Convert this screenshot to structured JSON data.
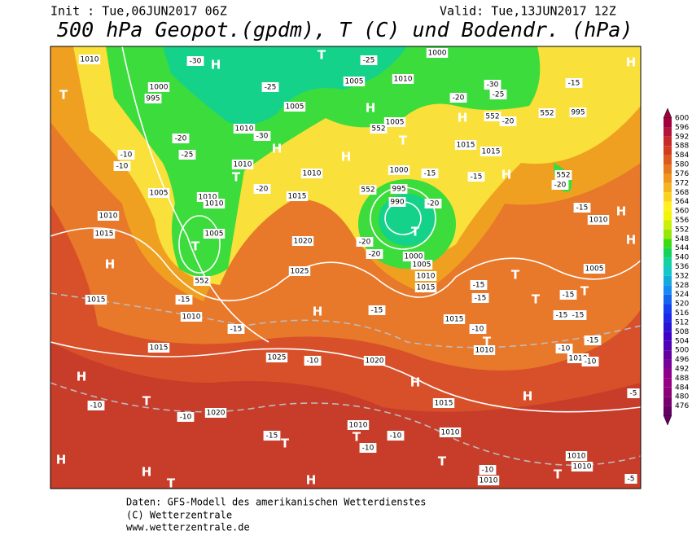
{
  "header": {
    "init": "Init : Tue,06JUN2017 06Z",
    "valid": "Valid: Tue,13JUN2017 12Z",
    "title": "500 hPa Geopot.(gpdm), T (C) und Bodendr. (hPa)"
  },
  "footer": [
    "Daten: GFS-Modell des amerikanischen Wetterdienstes",
    "(C) Wetterzentrale",
    "www.wetterzentrale.de"
  ],
  "colorbar": {
    "levels": [
      600,
      596,
      592,
      588,
      584,
      580,
      576,
      572,
      568,
      564,
      560,
      556,
      552,
      548,
      544,
      540,
      536,
      532,
      528,
      524,
      520,
      516,
      512,
      508,
      504,
      500,
      496,
      492,
      488,
      484,
      480,
      476
    ],
    "colors": [
      "#a0003c",
      "#b4143c",
      "#c82828",
      "#d23c1e",
      "#dc5a1e",
      "#e6781e",
      "#f0961e",
      "#f5b41e",
      "#fad21e",
      "#fff01e",
      "#f0f50a",
      "#c8f00a",
      "#96e60a",
      "#3cdc14",
      "#14d25a",
      "#14d2a0",
      "#14c8c8",
      "#14aadc",
      "#148cf0",
      "#1464f0",
      "#1440f0",
      "#1e28e6",
      "#2814d2",
      "#3c00c8",
      "#5000b4",
      "#6400a0",
      "#780096",
      "#8c008c",
      "#960082",
      "#8c0078",
      "#78006e",
      "#640064"
    ]
  },
  "map": {
    "labels": [
      "H",
      "H",
      "H",
      "H",
      "H",
      "H",
      "H",
      "H",
      "H",
      "H",
      "H",
      "H",
      "H",
      "H",
      "H",
      "H",
      "H",
      "T",
      "T",
      "T",
      "T",
      "T",
      "T",
      "T",
      "T",
      "T",
      "T",
      "T",
      "T",
      "T",
      "T",
      "T",
      "T",
      "1010",
      "1005",
      "1010",
      "1000",
      "995",
      "1000",
      "1005",
      "1005",
      "1015",
      "1015",
      "995",
      "1010",
      "1010",
      "1010",
      "1005",
      "1010",
      "1015",
      "1000",
      "995",
      "990",
      "1010",
      "1005",
      "1020",
      "1025",
      "1000",
      "1005",
      "1010",
      "1015",
      "1010",
      "1015",
      "1010",
      "1005",
      "1010",
      "1015",
      "1025",
      "1020",
      "1015",
      "1020",
      "1010",
      "1010",
      "1010",
      "1010",
      "1010",
      "1015",
      "1010",
      "1010",
      "1015",
      "-30",
      "-25",
      "-25",
      "-30",
      "-20",
      "-25",
      "-10",
      "-10",
      "-20",
      "-20",
      "-30",
      "-25",
      "-20",
      "-15",
      "-20",
      "-15",
      "-15",
      "-15",
      "-20",
      "-20",
      "-20",
      "-15",
      "-15",
      "-15",
      "-15",
      "-15",
      "-10",
      "-10",
      "-10",
      "-15",
      "-10",
      "-10",
      "-10",
      "-10",
      "-15",
      "-15",
      "-15",
      "-15",
      "-10",
      "-10",
      "-5",
      "-5",
      "552",
      "552",
      "552",
      "552",
      "552",
      "552"
    ]
  }
}
